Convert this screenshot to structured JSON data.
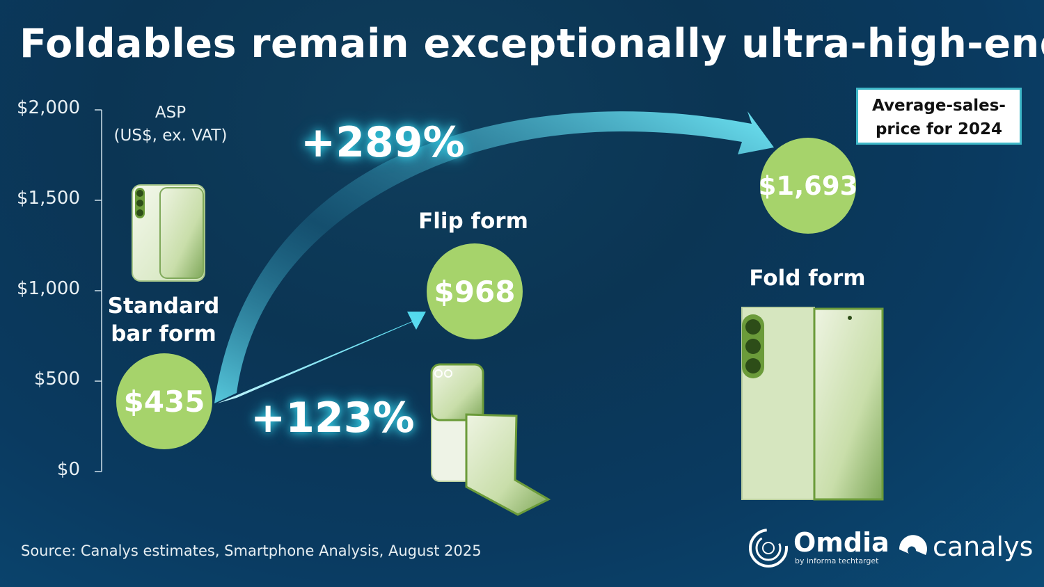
{
  "title": "Foldables remain exceptionally ultra-high-end…",
  "legend": "Average-sales-price for 2024",
  "source": "Source: Canalys estimates, Smartphone Analysis, August 2025",
  "logos": {
    "omdia": "Omdia",
    "omdia_sub": "by informa techtarget",
    "canalys": "canalys"
  },
  "colors": {
    "bubble": "#a6d36b",
    "arrow": "#36d0e6",
    "background": "#0b3a5c"
  },
  "chart_data": {
    "type": "scatter",
    "ylabel": "ASP\n(US$, ex. VAT)",
    "ylim": [
      0,
      2000
    ],
    "yticks": [
      "$0",
      "$500",
      "$1,000",
      "$1,500",
      "$2,000"
    ],
    "categories": [
      "Standard bar form",
      "Flip form",
      "Fold form"
    ],
    "values": [
      435,
      968,
      1693
    ],
    "data_labels": [
      "$435",
      "$968",
      "$1,693"
    ],
    "growth": [
      {
        "from": "Standard bar form",
        "to": "Fold form",
        "label": "+289%"
      },
      {
        "from": "Standard bar form",
        "to": "Flip form",
        "label": "+123%"
      }
    ]
  }
}
